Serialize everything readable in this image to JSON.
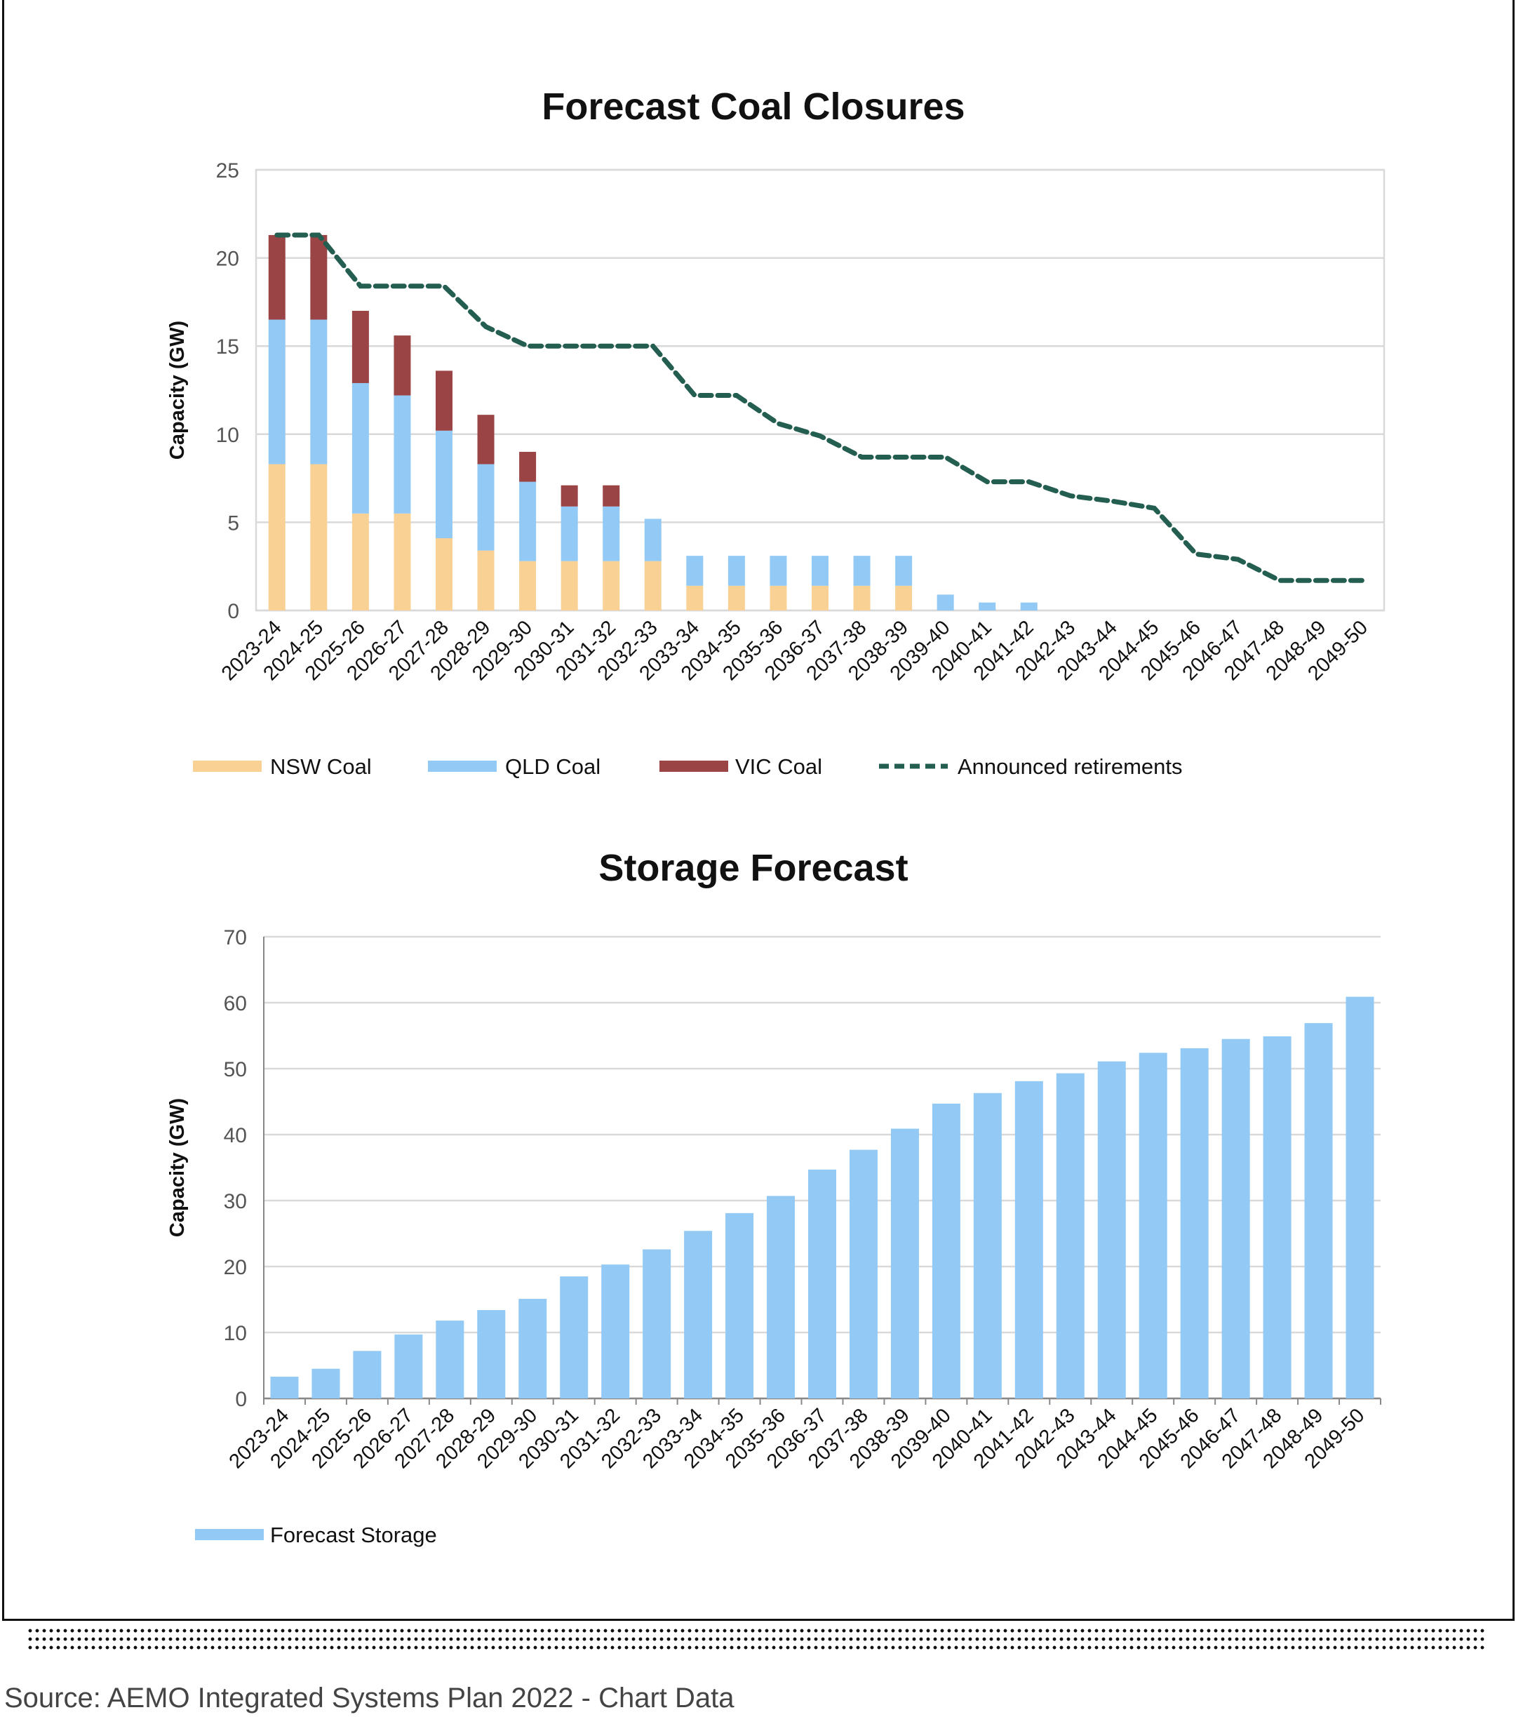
{
  "source": "Source: AEMO Integrated Systems Plan 2022 - Chart Data",
  "chart_data": [
    {
      "type": "bar",
      "stacked": true,
      "title": "Forecast Coal Closures",
      "ylabel": "Capacity (GW)",
      "xlabel": "",
      "ylim": [
        0,
        25
      ],
      "yticks": [
        "0",
        "5",
        "10",
        "15",
        "20",
        "25"
      ],
      "grid": true,
      "legend": "bottom",
      "categories": [
        "2023-24",
        "2024-25",
        "2025-26",
        "2026-27",
        "2027-28",
        "2028-29",
        "2029-30",
        "2030-31",
        "2031-32",
        "2032-33",
        "2033-34",
        "2034-35",
        "2035-36",
        "2036-37",
        "2037-38",
        "2038-39",
        "2039-40",
        "2040-41",
        "2041-42",
        "2042-43",
        "2043-44",
        "2044-45",
        "2045-46",
        "2046-47",
        "2047-48",
        "2048-49",
        "2049-50"
      ],
      "series": [
        {
          "name": "NSW Coal",
          "kind": "bar",
          "color": "#f9d194",
          "values": [
            8.3,
            8.3,
            5.5,
            5.5,
            4.1,
            3.4,
            2.8,
            2.8,
            2.8,
            2.8,
            1.4,
            1.4,
            1.4,
            1.4,
            1.4,
            1.4,
            0,
            0,
            0,
            0,
            0,
            0,
            0,
            0,
            0,
            0,
            0
          ]
        },
        {
          "name": "QLD Coal",
          "kind": "bar",
          "color": "#92c9f5",
          "values": [
            8.2,
            8.2,
            7.4,
            6.7,
            6.1,
            4.9,
            4.5,
            3.1,
            3.1,
            2.4,
            1.7,
            1.7,
            1.7,
            1.7,
            1.7,
            1.7,
            0.9,
            0.45,
            0.45,
            0,
            0,
            0,
            0,
            0,
            0,
            0,
            0
          ]
        },
        {
          "name": "VIC Coal",
          "kind": "bar",
          "color": "#9a4446",
          "values": [
            4.8,
            4.8,
            4.1,
            3.4,
            3.4,
            2.8,
            1.7,
            1.2,
            1.2,
            0,
            0,
            0,
            0,
            0,
            0,
            0,
            0,
            0,
            0,
            0,
            0,
            0,
            0,
            0,
            0,
            0,
            0
          ]
        },
        {
          "name": "Announced retirements",
          "kind": "line",
          "style": "dashed",
          "color": "#235e50",
          "values": [
            21.3,
            21.3,
            18.4,
            18.4,
            18.4,
            16.1,
            15.0,
            15.0,
            15.0,
            15.0,
            12.2,
            12.2,
            10.6,
            9.9,
            8.7,
            8.7,
            8.7,
            7.3,
            7.3,
            6.5,
            6.2,
            5.8,
            3.2,
            2.9,
            1.7,
            1.7,
            1.7
          ]
        }
      ]
    },
    {
      "type": "bar",
      "title": "Storage Forecast",
      "ylabel": "Capacity (GW)",
      "xlabel": "",
      "ylim": [
        0,
        70
      ],
      "yticks": [
        "0",
        "10",
        "20",
        "30",
        "40",
        "50",
        "60",
        "70"
      ],
      "grid": true,
      "legend": "bottom-left",
      "categories": [
        "2023-24",
        "2024-25",
        "2025-26",
        "2026-27",
        "2027-28",
        "2028-29",
        "2029-30",
        "2030-31",
        "2031-32",
        "2032-33",
        "2033-34",
        "2034-35",
        "2035-36",
        "2036-37",
        "2037-38",
        "2038-39",
        "2039-40",
        "2040-41",
        "2041-42",
        "2042-43",
        "2043-44",
        "2044-45",
        "2045-46",
        "2046-47",
        "2047-48",
        "2048-49",
        "2049-50"
      ],
      "series": [
        {
          "name": "Forecast Storage",
          "kind": "bar",
          "color": "#92c9f5",
          "values": [
            3.3,
            4.5,
            7.2,
            9.7,
            11.8,
            13.4,
            15.1,
            18.5,
            20.3,
            22.6,
            25.4,
            28.1,
            30.7,
            34.7,
            37.7,
            40.9,
            44.7,
            46.3,
            48.1,
            49.3,
            51.1,
            52.4,
            53.1,
            54.5,
            54.9,
            56.9,
            60.9
          ]
        }
      ]
    }
  ]
}
